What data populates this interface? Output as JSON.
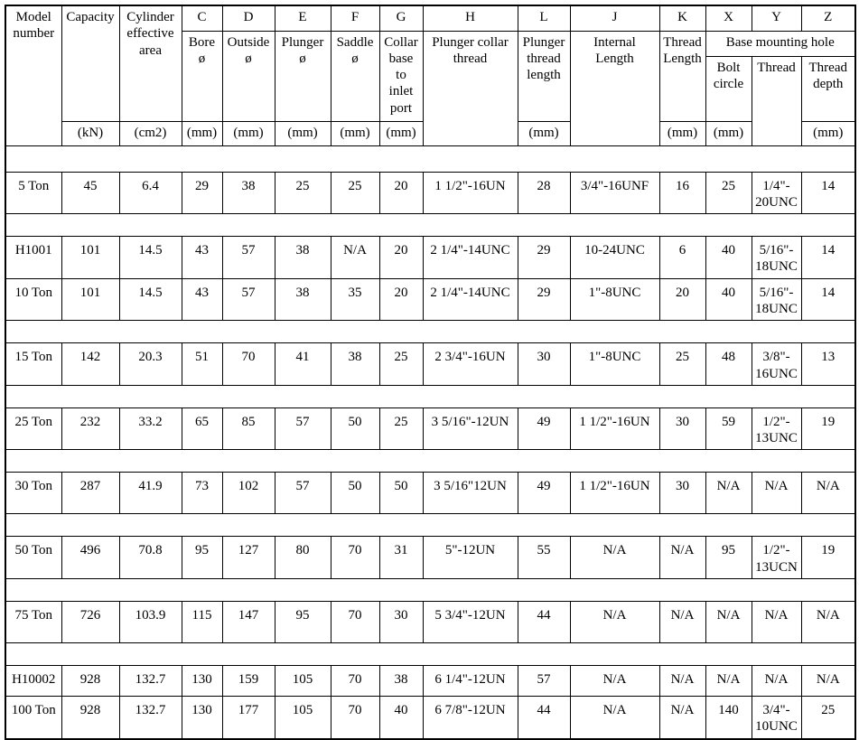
{
  "header": {
    "model_number": "Model\nnumber",
    "capacity": "Capacity",
    "cylinder_area": "Cylinder\neffective\narea",
    "letters": [
      "C",
      "D",
      "E",
      "F",
      "G",
      "H",
      "L",
      "J",
      "K",
      "X",
      "Y",
      "Z"
    ],
    "descs": {
      "c": "Bore\nø",
      "d": "Outside\nø",
      "e": "Plunger\nø",
      "f": "Saddle\nø",
      "g": "Collar\nbase\nto\ninlet\nport",
      "h": "Plunger collar\nthread",
      "l": "Plunger\nthread\nlength",
      "j": "Internal\nLength",
      "k": "Thread\nLength",
      "base_mounting_hole": "Base mounting hole",
      "x_bolt_circle": "Bolt\ncircle",
      "y_thread": "Thread",
      "z_thread_depth": "Thread\ndepth"
    },
    "units": {
      "capacity": "(kN)",
      "cylinder_area": "(cm2)",
      "c": "(mm)",
      "d": "(mm)",
      "e": "(mm)",
      "f": "(mm)",
      "g": "(mm)",
      "l": "(mm)",
      "k": "(mm)",
      "x": "(mm)",
      "z": "(mm)"
    }
  },
  "column_keys": [
    "model",
    "capacity",
    "area",
    "c",
    "d",
    "e",
    "f",
    "g",
    "h",
    "l",
    "j",
    "k",
    "x",
    "y",
    "z"
  ],
  "rows": [
    {
      "spacer_before": true,
      "cells": [
        "5 Ton",
        "45",
        "6.4",
        "29",
        "38",
        "25",
        "25",
        "20",
        "1 1/2\"-16UN",
        "28",
        "3/4\"-16UNF",
        "16",
        "25",
        "1/4\"-\n20UNC",
        "14"
      ]
    },
    {
      "spacer_before": true,
      "cells": [
        "H1001",
        "101",
        "14.5",
        "43",
        "57",
        "38",
        "N/A",
        "20",
        "2 1/4\"-14UNC",
        "29",
        "10-24UNC",
        "6",
        "40",
        "5/16\"-\n18UNC",
        "14"
      ]
    },
    {
      "spacer_before": false,
      "cells": [
        "10 Ton",
        "101",
        "14.5",
        "43",
        "57",
        "38",
        "35",
        "20",
        "2 1/4\"-14UNC",
        "29",
        "1\"-8UNC",
        "20",
        "40",
        "5/16\"-\n18UNC",
        "14"
      ]
    },
    {
      "spacer_before": true,
      "cells": [
        "15 Ton",
        "142",
        "20.3",
        "51",
        "70",
        "41",
        "38",
        "25",
        "2 3/4\"-16UN",
        "30",
        "1\"-8UNC",
        "25",
        "48",
        "3/8\"-\n16UNC",
        "13"
      ]
    },
    {
      "spacer_before": true,
      "cells": [
        "25 Ton",
        "232",
        "33.2",
        "65",
        "85",
        "57",
        "50",
        "25",
        "3 5/16\"-12UN",
        "49",
        "1 1/2\"-16UN",
        "30",
        "59",
        "1/2\"-\n13UNC",
        "19"
      ]
    },
    {
      "spacer_before": true,
      "cells": [
        "30 Ton",
        "287",
        "41.9",
        "73",
        "102",
        "57",
        "50",
        "50",
        "3 5/16\"12UN",
        "49",
        "1 1/2\"-16UN",
        "30",
        "N/A",
        "N/A",
        "N/A"
      ]
    },
    {
      "spacer_before": true,
      "cells": [
        "50 Ton",
        "496",
        "70.8",
        "95",
        "127",
        "80",
        "70",
        "31",
        "5\"-12UN",
        "55",
        "N/A",
        "N/A",
        "95",
        "1/2\"-\n13UCN",
        "19"
      ]
    },
    {
      "spacer_before": true,
      "cells": [
        "75 Ton",
        "726",
        "103.9",
        "115",
        "147",
        "95",
        "70",
        "30",
        "5 3/4\"-12UN",
        "44",
        "N/A",
        "N/A",
        "N/A",
        "N/A",
        "N/A"
      ]
    },
    {
      "spacer_before": true,
      "cells": [
        "H10002",
        "928",
        "132.7",
        "130",
        "159",
        "105",
        "70",
        "38",
        "6 1/4\"-12UN",
        "57",
        "N/A",
        "N/A",
        "N/A",
        "N/A",
        "N/A"
      ]
    },
    {
      "spacer_before": false,
      "cells": [
        "100 Ton",
        "928",
        "132.7",
        "130",
        "177",
        "105",
        "70",
        "40",
        "6 7/8\"-12UN",
        "44",
        "N/A",
        "N/A",
        "140",
        "3/4\"-\n10UNC",
        "25"
      ]
    }
  ]
}
